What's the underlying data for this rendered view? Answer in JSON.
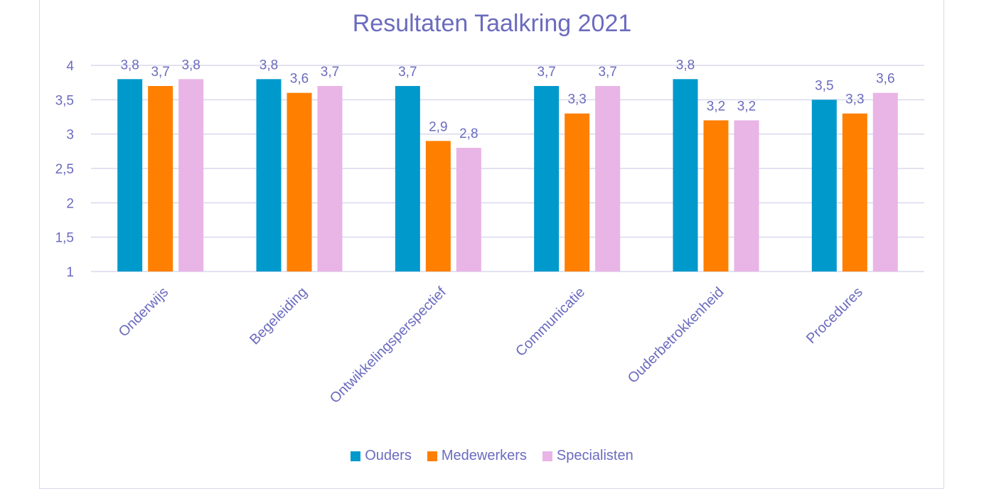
{
  "chart_data": {
    "type": "bar",
    "title": "Resultaten Taalkring 2021",
    "categories": [
      "Onderwijs",
      "Begeleiding",
      "Ontwikkelingsperspectief",
      "Communicatie",
      "Ouderbetrokkenheid",
      "Procedures"
    ],
    "series": [
      {
        "name": "Ouders",
        "color": "#0099cc",
        "values": [
          3.8,
          3.8,
          3.7,
          3.7,
          3.8,
          3.5
        ]
      },
      {
        "name": "Medewerkers",
        "color": "#ff7f00",
        "values": [
          3.7,
          3.6,
          2.9,
          3.3,
          3.2,
          3.3
        ]
      },
      {
        "name": "Specialisten",
        "color": "#e9b4e6",
        "values": [
          3.8,
          3.7,
          2.8,
          3.7,
          3.2,
          3.6
        ]
      }
    ],
    "ylim": [
      1,
      4
    ],
    "yticks": [
      "1",
      "1,5",
      "2",
      "2,5",
      "3",
      "3,5",
      "4"
    ],
    "data_labels": [
      [
        "3,8",
        "3,8",
        "3,7",
        "3,7",
        "3,8",
        "3,5"
      ],
      [
        "3,7",
        "3,6",
        "2,9",
        "3,3",
        "3,2",
        "3,3"
      ],
      [
        "3,8",
        "3,7",
        "2,8",
        "3,7",
        "3,2",
        "3,6"
      ]
    ],
    "grid": true,
    "legend_position": "bottom",
    "text_color": "#6b6bbf",
    "grid_color": "#d9d9ee"
  }
}
